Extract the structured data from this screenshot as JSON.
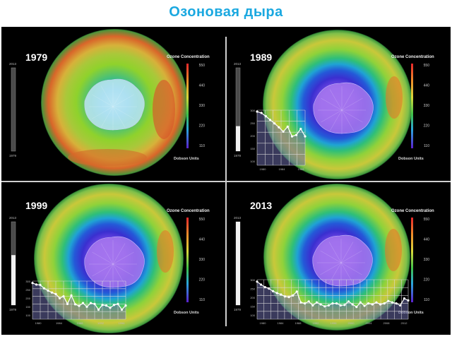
{
  "title": "Озоновая дыра",
  "legend": {
    "heading": "Ozone Concentration",
    "units": "Dobson Units",
    "scale_ticks": [
      "550",
      "440",
      "330",
      "220",
      "110"
    ]
  },
  "colors": {
    "title": "#1aa8e0",
    "background": "#000000",
    "divider": "#cfcfcf"
  },
  "panels": [
    {
      "year": "1979",
      "timeline": {
        "top": "2013",
        "bottom": "1979",
        "fill": 0.0
      },
      "hole_level": 0.05,
      "graph": null
    },
    {
      "year": "1989",
      "timeline": {
        "top": "2013",
        "bottom": "1979",
        "fill": 0.3
      },
      "hole_level": 0.7,
      "graph": {
        "y_ticks": [
          "300",
          "250",
          "200",
          "150",
          "100"
        ],
        "x_ticks": [
          "1980",
          "1984",
          "1988"
        ],
        "values": [
          295,
          290,
          278,
          265,
          252,
          238,
          222,
          240,
          205,
          210,
          232,
          205
        ]
      }
    },
    {
      "year": "1999",
      "timeline": {
        "top": "2013",
        "bottom": "1979",
        "fill": 0.6
      },
      "hole_level": 0.9,
      "graph": {
        "y_ticks": [
          "300",
          "250",
          "200",
          "150",
          "100"
        ],
        "x_ticks": [
          "1980",
          "1984",
          "1988",
          "1992",
          "1996"
        ],
        "values": [
          290,
          282,
          280,
          262,
          250,
          240,
          232,
          210,
          220,
          180,
          225,
          178,
          170,
          185,
          165,
          185,
          180,
          150,
          175,
          172,
          160,
          175,
          180,
          150,
          172
        ]
      }
    },
    {
      "year": "2013",
      "timeline": {
        "top": "2013",
        "bottom": "1979",
        "fill": 1.0
      },
      "hole_level": 0.85,
      "graph": {
        "y_ticks": [
          "300",
          "250",
          "200",
          "150",
          "100"
        ],
        "x_ticks": [
          "1980",
          "1984",
          "1988",
          "1992",
          "1996",
          "2000",
          "2004",
          "2008",
          "2012"
        ],
        "values": [
          290,
          275,
          262,
          255,
          242,
          232,
          225,
          215,
          212,
          220,
          240,
          185,
          180,
          190,
          170,
          185,
          175,
          165,
          170,
          180,
          180,
          170,
          172,
          190,
          175,
          162,
          185,
          168,
          180,
          175,
          185,
          175,
          180,
          192,
          185,
          180,
          170,
          205,
          195
        ]
      }
    }
  ]
}
